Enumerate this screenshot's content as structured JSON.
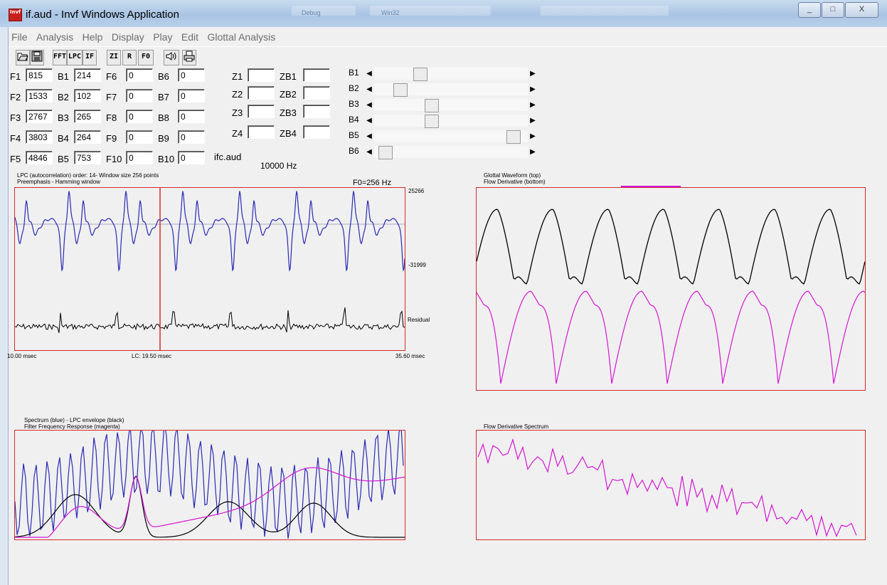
{
  "window": {
    "title": "if.aud - Invf Windows Application",
    "app_icon_text": "Invf",
    "caption_buttons": [
      "_",
      "□",
      "X"
    ],
    "background_tabs": [
      "Debug",
      "Win32"
    ]
  },
  "menu": [
    "File",
    "Analysis",
    "Help",
    "Display",
    "Play",
    "Edit",
    "Glottal Analysis"
  ],
  "toolbar": {
    "buttons": [
      {
        "name": "open-icon",
        "label": ""
      },
      {
        "name": "save-icon",
        "label": ""
      },
      {
        "name": "fft-button",
        "label": "FFT"
      },
      {
        "name": "lpc-button",
        "label": "LPC"
      },
      {
        "name": "if-button",
        "label": "IF"
      },
      {
        "name": "zi-button",
        "label": "ZI"
      },
      {
        "name": "r-button",
        "label": "R"
      },
      {
        "name": "f0-button",
        "label": "F0"
      },
      {
        "name": "speaker-icon",
        "label": ""
      },
      {
        "name": "print-icon",
        "label": ""
      }
    ]
  },
  "formants": [
    {
      "label": "F1",
      "value": "815"
    },
    {
      "label": "F2",
      "value": "1533"
    },
    {
      "label": "F3",
      "value": "2767"
    },
    {
      "label": "F4",
      "value": "3803"
    },
    {
      "label": "F5",
      "value": "4846"
    }
  ],
  "bandwidths": [
    {
      "label": "B1",
      "value": "214"
    },
    {
      "label": "B2",
      "value": "102"
    },
    {
      "label": "B3",
      "value": "265"
    },
    {
      "label": "B4",
      "value": "264"
    },
    {
      "label": "B5",
      "value": "753"
    }
  ],
  "formants_hi": [
    {
      "label": "F6",
      "value": "0"
    },
    {
      "label": "F7",
      "value": "0"
    },
    {
      "label": "F8",
      "value": "0"
    },
    {
      "label": "F9",
      "value": "0"
    },
    {
      "label": "F10",
      "value": "0"
    }
  ],
  "bandwidths_hi": [
    {
      "label": "B6",
      "value": "0"
    },
    {
      "label": "B7",
      "value": "0"
    },
    {
      "label": "B8",
      "value": "0"
    },
    {
      "label": "B9",
      "value": "0"
    },
    {
      "label": "B10",
      "value": "0"
    }
  ],
  "zeros": [
    {
      "label": "Z1",
      "value": ""
    },
    {
      "label": "Z2",
      "value": ""
    },
    {
      "label": "Z3",
      "value": ""
    },
    {
      "label": "Z4",
      "value": ""
    }
  ],
  "zero_bandwidths": [
    {
      "label": "ZB1",
      "value": ""
    },
    {
      "label": "ZB2",
      "value": ""
    },
    {
      "label": "ZB3",
      "value": ""
    },
    {
      "label": "ZB4",
      "value": ""
    }
  ],
  "filename": "ifc.aud",
  "sample_rate": "10000 Hz",
  "bandwidth_sliders": [
    {
      "label": "B1",
      "position": 0.28
    },
    {
      "label": "B2",
      "position": 0.14
    },
    {
      "label": "B3",
      "position": 0.36
    },
    {
      "label": "B4",
      "position": 0.36
    },
    {
      "label": "B5",
      "position": 0.95
    },
    {
      "label": "B6",
      "position": 0.03
    }
  ],
  "lpc_panel": {
    "header_line1": "LPC (autocorrelation) order: 14- Window size 256 points",
    "header_line2": "Preemphasis - Hamming window",
    "f0": "F0=256 Hz",
    "ymax": "25266",
    "ymin": "-31999",
    "residual": "Residual",
    "t_start": "10.00 msec",
    "cursor": "LC: 19.50 msec",
    "t_end": "35.60 msec"
  },
  "glottal_panel": {
    "header_line1": "Glottal Waveform (top)",
    "header_line2": "Flow Derivative (bottom)"
  },
  "spectrum_panel": {
    "header_line1": "Spectrum (blue) - LPC envelope (black)",
    "header_line2": "Filter Frequency Response (magenta)"
  },
  "flow_spectrum_panel": {
    "header_line1": "Flow Derivative Spectrum"
  },
  "colors": {
    "signal": "#2a2ab4",
    "residual": "#000000",
    "derivative": "#d416d4",
    "panel_border": "#d42a2a"
  }
}
